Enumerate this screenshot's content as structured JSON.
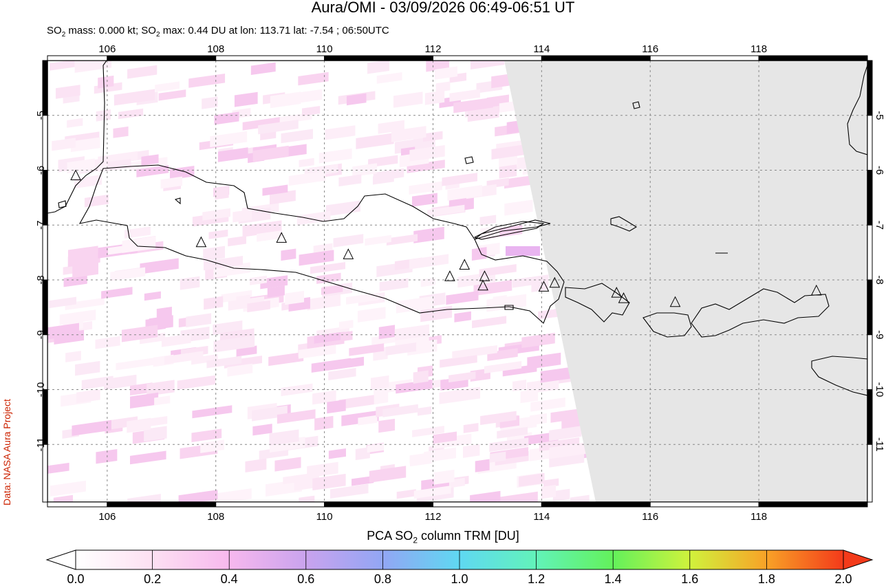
{
  "title": "Aura/OMI - 03/09/2026 06:49-06:51 UT",
  "subtitle": {
    "part1": "SO",
    "sub": "2",
    "part2": " mass: 0.000 kt; SO",
    "sub2": "2",
    "part3": " max: 0.44 DU at lon: 113.71 lat: -7.54 ; 06:50UTC"
  },
  "credit": "Data: NASA Aura Project",
  "colorbar": {
    "label_pre": "PCA SO",
    "label_sub": "2",
    "label_post": " column TRM [DU]",
    "ticks": [
      "0.0",
      "0.2",
      "0.4",
      "0.6",
      "0.8",
      "1.0",
      "1.2",
      "1.4",
      "1.6",
      "1.8",
      "2.0"
    ],
    "colors": [
      "#ffffff",
      "#fde0f2",
      "#f7b8ee",
      "#c9a3ee",
      "#92a6f4",
      "#5fd8f2",
      "#62f3b9",
      "#63f15b",
      "#d0f23c",
      "#f8a227",
      "#f33a1a"
    ]
  },
  "map": {
    "lon_ticks": [
      "106",
      "108",
      "110",
      "112",
      "114",
      "116",
      "118"
    ],
    "lat_ticks": [
      "-5",
      "-6",
      "-7",
      "-8",
      "-9",
      "-10",
      "-11"
    ],
    "lon_range": [
      104.9,
      120.0
    ],
    "lat_range": [
      -12.05,
      -4.0
    ],
    "volcanoes": [
      [
        105.42,
        -6.1
      ],
      [
        107.73,
        -7.32
      ],
      [
        109.21,
        -7.24
      ],
      [
        110.44,
        -7.54
      ],
      [
        112.31,
        -7.94
      ],
      [
        112.58,
        -7.73
      ],
      [
        112.95,
        -7.94
      ],
      [
        112.92,
        -8.11
      ],
      [
        114.04,
        -8.13
      ],
      [
        114.24,
        -8.06
      ],
      [
        115.38,
        -8.24
      ],
      [
        115.51,
        -8.34
      ],
      [
        116.46,
        -8.41
      ],
      [
        119.06,
        -8.2
      ]
    ],
    "no_data_color": "#e6e6e6"
  }
}
